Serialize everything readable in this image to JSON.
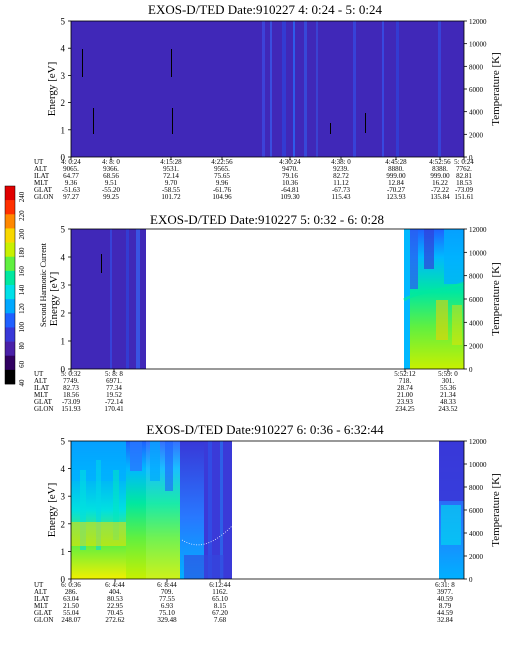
{
  "chart_data": [
    {
      "type": "heatmap",
      "title": "EXOS-D/TED   Date:910227  4: 0:24 - 5: 0:24",
      "ylabel": "Energy [eV]",
      "y2label": "Temperature [K]",
      "ylim": [
        0,
        5
      ],
      "y2lim": [
        0,
        12000
      ],
      "yticks": [
        "0",
        "1",
        "2",
        "3",
        "4",
        "5"
      ],
      "y2ticks": [
        "0",
        "2000",
        "4000",
        "6000",
        "8000",
        "10000",
        "12000"
      ],
      "x_tick_times": [
        "4: 0:24",
        "4: 8: 0",
        "4:15:28",
        "4:22:56",
        "4:30:24",
        "4:38: 0",
        "4:45:28",
        "4:52:56",
        "5: 0:24"
      ],
      "data_coverage": [
        [
          0,
          1
        ]
      ],
      "row_labels": [
        "UT",
        "ALT",
        "ILAT",
        "MLT",
        "GLAT",
        "GLON"
      ],
      "rows": {
        "ALT": [
          "9065.",
          "9366.",
          "9531.",
          "9565.",
          "9470.",
          "9239.",
          "8880.",
          "8388.",
          "7762."
        ],
        "ILAT": [
          "64.77",
          "68.56",
          "72.14",
          "75.65",
          "79.16",
          "82.72",
          "999.00",
          "999.00",
          "82.81"
        ],
        "MLT": [
          "9.36",
          "9.51",
          "9.70",
          "9.96",
          "10.36",
          "11.12",
          "12.84",
          "16.22",
          "18.53"
        ],
        "GLAT": [
          "-51.63",
          "-55.20",
          "-58.55",
          "-61.76",
          "-64.81",
          "-67.73",
          "-70.27",
          "-72.22",
          "-73.09"
        ],
        "GLON": [
          "97.27",
          "99.25",
          "101.72",
          "104.96",
          "109.30",
          "115.43",
          "123.93",
          "135.84",
          "151.61"
        ]
      }
    },
    {
      "type": "heatmap",
      "title": "EXOS-D/TED   Date:910227  5: 0:32 - 6: 0:28",
      "ylabel": "Energy [eV]",
      "y2label": "Temperature [K]",
      "ylim": [
        0,
        5
      ],
      "y2lim": [
        0,
        12000
      ],
      "yticks": [
        "0",
        "1",
        "2",
        "3",
        "4",
        "5"
      ],
      "y2ticks": [
        "0",
        "2000",
        "4000",
        "6000",
        "8000",
        "10000",
        "12000"
      ],
      "x_tick_times": [
        "5: 0:32",
        "5: 8: 8",
        "5:52:12",
        "5:59: 0"
      ],
      "data_coverage": [
        [
          0,
          0.19
        ],
        [
          0.88,
          1
        ]
      ],
      "row_labels": [
        "UT",
        "ALT",
        "ILAT",
        "MLT",
        "GLAT",
        "GLON"
      ],
      "rows": {
        "ALT": [
          "7749.",
          "6971.",
          "718.",
          "301."
        ],
        "ILAT": [
          "82.73",
          "77.34",
          "28.74",
          "55.36"
        ],
        "MLT": [
          "18.56",
          "19.52",
          "21.00",
          "21.34"
        ],
        "GLAT": [
          "-73.09",
          "-72.14",
          "23.93",
          "48.33"
        ],
        "GLON": [
          "151.93",
          "170.41",
          "234.25",
          "243.52"
        ]
      }
    },
    {
      "type": "heatmap",
      "title": "EXOS-D/TED   Date:910227  6: 0:36 - 6:32:44",
      "ylabel": "Energy [eV]",
      "y2label": "Temperature [K]",
      "ylim": [
        0,
        5
      ],
      "y2lim": [
        0,
        12000
      ],
      "yticks": [
        "0",
        "1",
        "2",
        "3",
        "4",
        "5"
      ],
      "y2ticks": [
        "0",
        "2000",
        "4000",
        "6000",
        "8000",
        "10000",
        "12000"
      ],
      "x_tick_times": [
        "6: 0:36",
        "6: 4:44",
        "6: 8:44",
        "6:12:44",
        "6:31: 8"
      ],
      "data_coverage": [
        [
          0,
          0.42
        ],
        [
          0.94,
          1
        ]
      ],
      "row_labels": [
        "UT",
        "ALT",
        "ILAT",
        "MLT",
        "GLAT",
        "GLON"
      ],
      "rows": {
        "ALT": [
          "286.",
          "404.",
          "709.",
          "1162.",
          "3977."
        ],
        "ILAT": [
          "63.04",
          "80.53",
          "77.55",
          "65.10",
          "40.59"
        ],
        "MLT": [
          "21.50",
          "22.95",
          "6.93",
          "8.15",
          "8.79"
        ],
        "GLAT": [
          "55.04",
          "70.45",
          "75.10",
          "67.20",
          "44.59"
        ],
        "GLON": [
          "248.07",
          "272.62",
          "329.48",
          "7.68",
          "32.84"
        ]
      }
    }
  ],
  "colorbar": {
    "label": "Second Harmonic Current",
    "ticks": [
      "40",
      "60",
      "80",
      "100",
      "120",
      "140",
      "160",
      "180",
      "200",
      "220",
      "240"
    ]
  },
  "colors": {
    "background": "#4028b8",
    "scale": [
      "#000000",
      "#300060",
      "#4a20a8",
      "#3838d8",
      "#2060ff",
      "#00a8ff",
      "#00e0e8",
      "#00e8a0",
      "#60f040",
      "#c8f000",
      "#f8d800",
      "#ff8800",
      "#ff3000",
      "#e00000"
    ]
  }
}
